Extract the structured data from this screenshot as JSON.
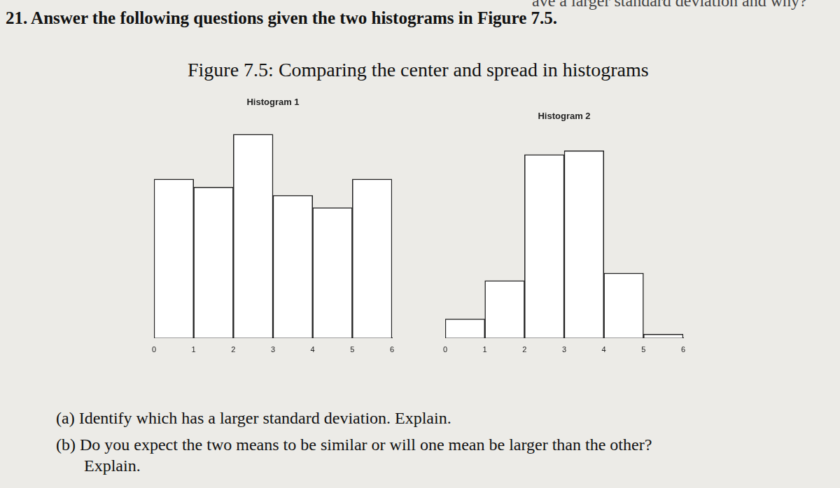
{
  "page": {
    "top_fragment": "ave a larger standard deviation and why?",
    "question": "21. Answer the following questions given the two histograms in Figure 7.5.",
    "figure_title": "Figure 7.5: Comparing the center and spread in histograms",
    "parts": [
      "(a) Identify which has a larger standard deviation. Explain.",
      "(b) Do you expect the two means to be similar or will one mean be larger than the other? Explain."
    ]
  },
  "chart_data": [
    {
      "type": "histogram",
      "title": "Histogram 1",
      "bins": [
        0,
        1,
        2,
        3,
        4,
        5,
        6
      ],
      "values": [
        39,
        37,
        50,
        35,
        32,
        39
      ],
      "color": "#ffffff",
      "xlim": [
        0,
        6
      ],
      "xticks": [
        0,
        1,
        2,
        3,
        4,
        5,
        6
      ],
      "ylim": [
        0,
        55
      ],
      "grid": false,
      "tick_labels": "x"
    },
    {
      "type": "histogram",
      "title": "Histogram 2",
      "bins": [
        0,
        1,
        2,
        3,
        4,
        5,
        6
      ],
      "values": [
        5,
        15,
        48,
        49,
        17,
        1
      ],
      "color": "#ffffff",
      "xlim": [
        0,
        6
      ],
      "xticks": [
        0,
        1,
        2,
        3,
        4,
        5,
        6
      ],
      "ylim": [
        0,
        55
      ],
      "grid": false,
      "tick_labels": "x"
    }
  ]
}
